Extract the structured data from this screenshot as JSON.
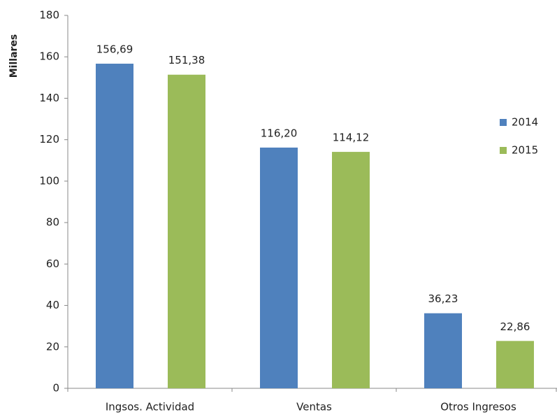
{
  "chart_data": {
    "type": "bar",
    "ylabel": "Millares",
    "categories": [
      "Ingsos. Actividad",
      "Ventas",
      "Otros Ingresos"
    ],
    "series": [
      {
        "name": "2014",
        "color": "#4f81bd",
        "values": [
          156.69,
          116.2,
          36.23
        ],
        "value_labels": [
          "156,69",
          "116,20",
          "36,23"
        ]
      },
      {
        "name": "2015",
        "color": "#9bbb59",
        "values": [
          151.38,
          114.12,
          22.86
        ],
        "value_labels": [
          "151,38",
          "114,12",
          "22,86"
        ]
      }
    ],
    "ylim": [
      0,
      180
    ],
    "yticks": [
      0,
      20,
      40,
      60,
      80,
      100,
      120,
      140,
      160,
      180
    ],
    "grid": false,
    "legend": "right"
  }
}
